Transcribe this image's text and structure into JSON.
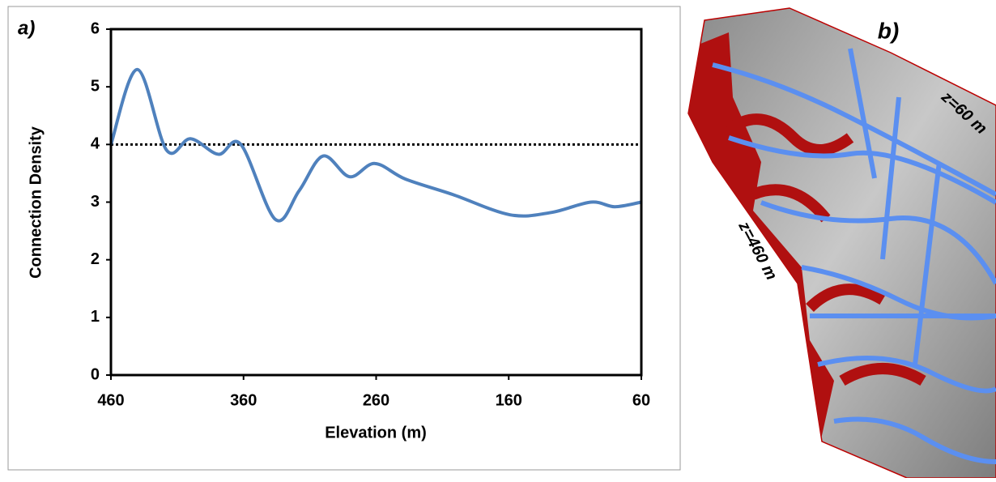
{
  "chart_data": {
    "type": "line",
    "panel_label": "a)",
    "x_label": "Elevation (m)",
    "y_label": "Connection Density",
    "x": [
      460,
      440,
      418,
      400,
      379,
      362,
      336,
      318,
      300,
      280,
      261,
      238,
      202,
      159,
      128,
      98,
      80,
      60
    ],
    "series": [
      {
        "color": "#4f81bd",
        "values": [
          4.0,
          5.3,
          3.9,
          4.1,
          3.83,
          4.0,
          2.7,
          3.2,
          3.8,
          3.44,
          3.67,
          3.4,
          3.13,
          2.78,
          2.82,
          3.0,
          2.92,
          3.0
        ]
      }
    ],
    "xlim": [
      460,
      60
    ],
    "xticks": [
      460,
      360,
      260,
      160,
      60
    ],
    "ylim": [
      0,
      6
    ],
    "yticks": [
      0,
      1,
      2,
      3,
      4,
      5,
      6
    ],
    "reference_line": {
      "value": 4,
      "color": "#000000"
    }
  },
  "map": {
    "panel_label": "b)",
    "annotations": [
      "z=60 m",
      "z=460 m"
    ]
  }
}
